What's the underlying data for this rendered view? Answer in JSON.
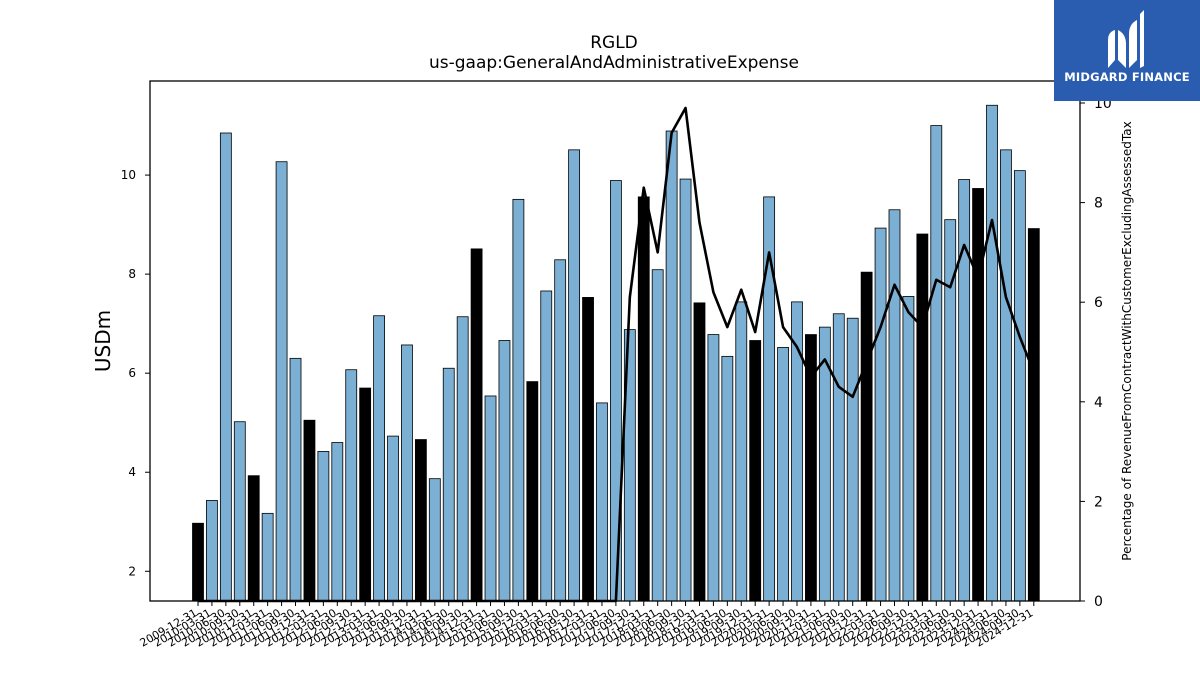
{
  "brand": {
    "name": "MIDGARD FINANCE",
    "logo_icon": "midgard-logo-icon",
    "color": "#2a5db0"
  },
  "chart_data": {
    "type": "bar",
    "title": "RGLD",
    "subtitle": "us-gaap:GeneralAndAdministrativeExpense",
    "ylabel": "USDm",
    "y2label": "Percentage of RevenueFromContractWithCustomerExcludingAssessedTax",
    "ylim": [
      1.4,
      11.9
    ],
    "y2lim": [
      0,
      10
    ],
    "yticks": [
      2,
      4,
      6,
      8,
      10
    ],
    "y2ticks": [
      0,
      2,
      4,
      6,
      8,
      10
    ],
    "colors": {
      "quarter_bar": "#7bafd4",
      "annual_bar": "#000000",
      "line": "#000000"
    },
    "categories": [
      "2009-12-31",
      "2010-03-31",
      "2010-06-30",
      "2010-09-30",
      "2010-12-31",
      "2011-03-31",
      "2011-06-30",
      "2011-09-30",
      "2011-12-31",
      "2012-03-31",
      "2012-06-30",
      "2012-09-30",
      "2012-12-31",
      "2013-03-31",
      "2013-06-30",
      "2013-09-30",
      "2013-12-31",
      "2014-03-31",
      "2014-06-30",
      "2014-09-30",
      "2014-12-31",
      "2015-03-31",
      "2015-06-30",
      "2015-09-30",
      "2015-12-31",
      "2016-03-31",
      "2016-06-30",
      "2016-09-30",
      "2016-12-31",
      "2017-03-31",
      "2017-06-30",
      "2017-09-30",
      "2017-12-31",
      "2018-03-31",
      "2018-06-30",
      "2018-09-30",
      "2018-12-31",
      "2019-03-31",
      "2019-06-30",
      "2019-09-30",
      "2019-12-31",
      "2020-03-31",
      "2020-06-30",
      "2020-09-30",
      "2020-12-31",
      "2021-03-31",
      "2021-06-30",
      "2021-09-30",
      "2021-12-31",
      "2022-03-31",
      "2022-06-30",
      "2022-09-30",
      "2022-12-31",
      "2023-03-31",
      "2023-06-30",
      "2023-09-30",
      "2023-12-31",
      "2024-03-31",
      "2024-06-30",
      "2024-09-30",
      "2024-12-31"
    ],
    "series": [
      {
        "name": "",
        "values": [
          2.97,
          3.43,
          10.85,
          5.02,
          3.93,
          3.17,
          10.27,
          6.3,
          5.05,
          4.42,
          4.6,
          6.07,
          5.7,
          7.16,
          4.73,
          6.57,
          4.66,
          3.87,
          6.1,
          7.14,
          8.51,
          5.54,
          6.66,
          9.51,
          5.83,
          7.66,
          8.29,
          10.51,
          7.53,
          5.4,
          9.89,
          6.88,
          9.56,
          8.09,
          10.89,
          9.92,
          7.42,
          6.78,
          6.34,
          7.44,
          6.66,
          9.56,
          6.52,
          7.44,
          6.78,
          6.93,
          7.2,
          7.11,
          8.04,
          8.93,
          9.3,
          7.55,
          8.81,
          11.0,
          9.1,
          9.91,
          9.73,
          11.41,
          10.51,
          10.09,
          8.92
        ],
        "annual": [
          true,
          false,
          false,
          false,
          true,
          false,
          false,
          false,
          true,
          false,
          false,
          false,
          true,
          false,
          false,
          false,
          true,
          false,
          false,
          false,
          true,
          false,
          false,
          false,
          true,
          false,
          false,
          false,
          true,
          false,
          false,
          false,
          true,
          false,
          false,
          false,
          true,
          false,
          false,
          false,
          true,
          false,
          false,
          false,
          true,
          false,
          false,
          false,
          true,
          false,
          false,
          false,
          true,
          false,
          false,
          false,
          true,
          false,
          false,
          false,
          true
        ]
      }
    ],
    "line": {
      "name": "",
      "axis": "right",
      "values": [
        0,
        0,
        0,
        0,
        0,
        0,
        0,
        0,
        0,
        0,
        0,
        0,
        0,
        0,
        0,
        0,
        0,
        0,
        0,
        0,
        0,
        0,
        0,
        0,
        0,
        0,
        0,
        0,
        0,
        0,
        0,
        6.1,
        8.3,
        7.0,
        9.4,
        9.9,
        7.6,
        6.2,
        5.5,
        6.25,
        5.4,
        7.0,
        5.5,
        5.1,
        4.5,
        4.85,
        4.3,
        4.1,
        4.8,
        5.5,
        6.35,
        5.8,
        5.5,
        6.45,
        6.3,
        7.15,
        6.5,
        7.65,
        6.1,
        5.3,
        4.6
      ]
    }
  }
}
